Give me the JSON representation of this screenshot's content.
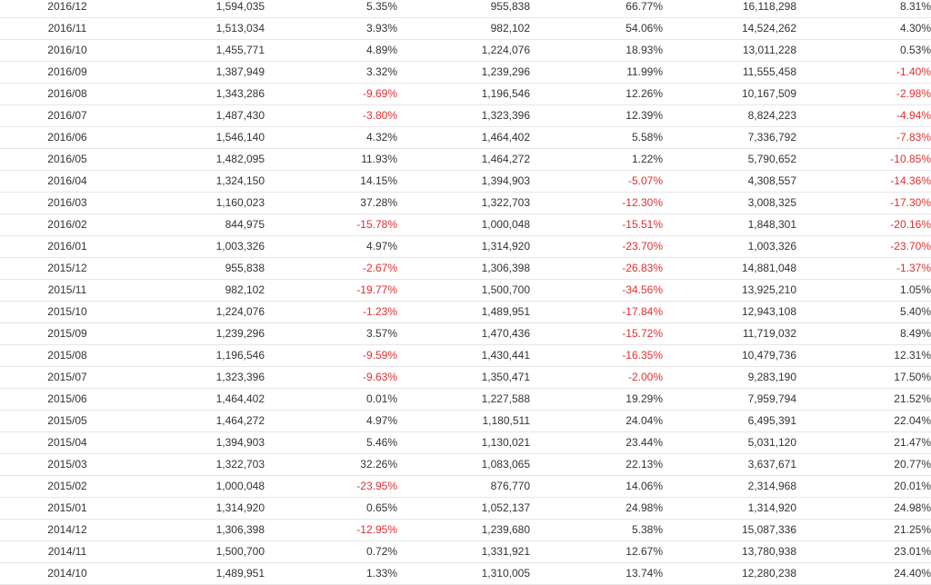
{
  "colors": {
    "text": "#333333",
    "negative": "#e02f2f",
    "row_border": "#e6e6e6"
  },
  "table": {
    "rows": [
      [
        "2016/12",
        "1,594,035",
        "5.35%",
        "955,838",
        "66.77%",
        "16,118,298",
        "8.31%"
      ],
      [
        "2016/11",
        "1,513,034",
        "3.93%",
        "982,102",
        "54.06%",
        "14,524,262",
        "4.30%"
      ],
      [
        "2016/10",
        "1,455,771",
        "4.89%",
        "1,224,076",
        "18.93%",
        "13,011,228",
        "0.53%"
      ],
      [
        "2016/09",
        "1,387,949",
        "3.32%",
        "1,239,296",
        "11.99%",
        "11,555,458",
        "-1.40%"
      ],
      [
        "2016/08",
        "1,343,286",
        "-9.69%",
        "1,196,546",
        "12.26%",
        "10,167,509",
        "-2.98%"
      ],
      [
        "2016/07",
        "1,487,430",
        "-3.80%",
        "1,323,396",
        "12.39%",
        "8,824,223",
        "-4.94%"
      ],
      [
        "2016/06",
        "1,546,140",
        "4.32%",
        "1,464,402",
        "5.58%",
        "7,336,792",
        "-7.83%"
      ],
      [
        "2016/05",
        "1,482,095",
        "11.93%",
        "1,464,272",
        "1.22%",
        "5,790,652",
        "-10.85%"
      ],
      [
        "2016/04",
        "1,324,150",
        "14.15%",
        "1,394,903",
        "-5.07%",
        "4,308,557",
        "-14.36%"
      ],
      [
        "2016/03",
        "1,160,023",
        "37.28%",
        "1,322,703",
        "-12.30%",
        "3,008,325",
        "-17.30%"
      ],
      [
        "2016/02",
        "844,975",
        "-15.78%",
        "1,000,048",
        "-15.51%",
        "1,848,301",
        "-20.16%"
      ],
      [
        "2016/01",
        "1,003,326",
        "4.97%",
        "1,314,920",
        "-23.70%",
        "1,003,326",
        "-23.70%"
      ],
      [
        "2015/12",
        "955,838",
        "-2.67%",
        "1,306,398",
        "-26.83%",
        "14,881,048",
        "-1.37%"
      ],
      [
        "2015/11",
        "982,102",
        "-19.77%",
        "1,500,700",
        "-34.56%",
        "13,925,210",
        "1.05%"
      ],
      [
        "2015/10",
        "1,224,076",
        "-1.23%",
        "1,489,951",
        "-17.84%",
        "12,943,108",
        "5.40%"
      ],
      [
        "2015/09",
        "1,239,296",
        "3.57%",
        "1,470,436",
        "-15.72%",
        "11,719,032",
        "8.49%"
      ],
      [
        "2015/08",
        "1,196,546",
        "-9.59%",
        "1,430,441",
        "-16.35%",
        "10,479,736",
        "12.31%"
      ],
      [
        "2015/07",
        "1,323,396",
        "-9.63%",
        "1,350,471",
        "-2.00%",
        "9,283,190",
        "17.50%"
      ],
      [
        "2015/06",
        "1,464,402",
        "0.01%",
        "1,227,588",
        "19.29%",
        "7,959,794",
        "21.52%"
      ],
      [
        "2015/05",
        "1,464,272",
        "4.97%",
        "1,180,511",
        "24.04%",
        "6,495,391",
        "22.04%"
      ],
      [
        "2015/04",
        "1,394,903",
        "5.46%",
        "1,130,021",
        "23.44%",
        "5,031,120",
        "21.47%"
      ],
      [
        "2015/03",
        "1,322,703",
        "32.26%",
        "1,083,065",
        "22.13%",
        "3,637,671",
        "20.77%"
      ],
      [
        "2015/02",
        "1,000,048",
        "-23.95%",
        "876,770",
        "14.06%",
        "2,314,968",
        "20.01%"
      ],
      [
        "2015/01",
        "1,314,920",
        "0.65%",
        "1,052,137",
        "24.98%",
        "1,314,920",
        "24.98%"
      ],
      [
        "2014/12",
        "1,306,398",
        "-12.95%",
        "1,239,680",
        "5.38%",
        "15,087,336",
        "21.25%"
      ],
      [
        "2014/11",
        "1,500,700",
        "0.72%",
        "1,331,921",
        "12.67%",
        "13,780,938",
        "23.01%"
      ],
      [
        "2014/10",
        "1,489,951",
        "1.33%",
        "1,310,005",
        "13.74%",
        "12,280,238",
        "24.40%"
      ]
    ]
  }
}
